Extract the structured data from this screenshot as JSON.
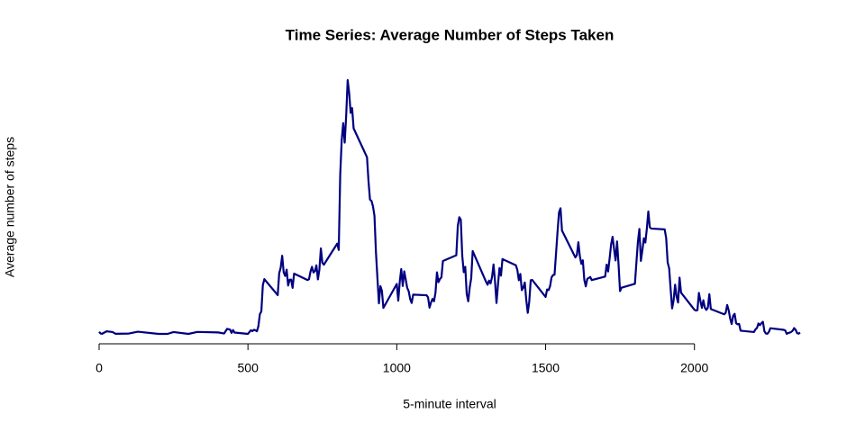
{
  "chart_data": {
    "type": "line",
    "title": "Time Series: Average Number of Steps Taken",
    "xlabel": "5-minute interval",
    "ylabel": "Average number of steps",
    "x": [
      0,
      5,
      10,
      25,
      45,
      55,
      100,
      130,
      200,
      230,
      250,
      300,
      330,
      400,
      420,
      430,
      440,
      445,
      450,
      455,
      500,
      505,
      510,
      515,
      520,
      525,
      530,
      535,
      540,
      545,
      550,
      555,
      600,
      605,
      610,
      615,
      620,
      625,
      630,
      635,
      640,
      645,
      650,
      655,
      700,
      705,
      710,
      715,
      720,
      725,
      730,
      735,
      740,
      745,
      750,
      755,
      800,
      805,
      810,
      815,
      820,
      825,
      830,
      835,
      840,
      845,
      850,
      855,
      900,
      905,
      910,
      915,
      920,
      925,
      930,
      935,
      940,
      945,
      950,
      955,
      1000,
      1005,
      1010,
      1015,
      1020,
      1025,
      1030,
      1035,
      1040,
      1045,
      1050,
      1055,
      1100,
      1105,
      1110,
      1115,
      1120,
      1125,
      1130,
      1135,
      1140,
      1145,
      1150,
      1155,
      1200,
      1205,
      1210,
      1215,
      1220,
      1225,
      1230,
      1235,
      1240,
      1245,
      1250,
      1255,
      1300,
      1305,
      1310,
      1315,
      1320,
      1325,
      1330,
      1335,
      1340,
      1345,
      1350,
      1355,
      1400,
      1405,
      1410,
      1415,
      1420,
      1425,
      1430,
      1435,
      1440,
      1445,
      1450,
      1455,
      1500,
      1505,
      1510,
      1515,
      1520,
      1525,
      1530,
      1535,
      1540,
      1545,
      1550,
      1555,
      1600,
      1605,
      1610,
      1615,
      1620,
      1625,
      1630,
      1635,
      1640,
      1645,
      1650,
      1655,
      1700,
      1705,
      1710,
      1715,
      1720,
      1725,
      1730,
      1735,
      1740,
      1745,
      1750,
      1755,
      1800,
      1805,
      1810,
      1815,
      1820,
      1825,
      1830,
      1835,
      1840,
      1845,
      1850,
      1855,
      1900,
      1905,
      1910,
      1915,
      1920,
      1925,
      1930,
      1935,
      1940,
      1945,
      1950,
      1955,
      2000,
      2005,
      2010,
      2015,
      2020,
      2025,
      2030,
      2035,
      2040,
      2045,
      2050,
      2055,
      2100,
      2105,
      2110,
      2115,
      2120,
      2125,
      2130,
      2135,
      2140,
      2145,
      2150,
      2155,
      2200,
      2205,
      2210,
      2215,
      2220,
      2225,
      2230,
      2235,
      2240,
      2245,
      2250,
      2255,
      2300,
      2305,
      2310,
      2315,
      2320,
      2325,
      2330,
      2335,
      2340,
      2345,
      2350,
      2355
    ],
    "series": [
      {
        "color": "#000080",
        "values": [
          1.7,
          0.3,
          0.1,
          2.1,
          1.5,
          0.1,
          0.3,
          1.8,
          0,
          0,
          1.5,
          0,
          1.6,
          1.2,
          0.3,
          4.1,
          3.5,
          0.8,
          3.1,
          1.1,
          0,
          1.56,
          3.0,
          2.25,
          3.32,
          2.96,
          2.09,
          6.06,
          16.0,
          18.3,
          39.5,
          44.5,
          31.5,
          49.3,
          53.8,
          63.5,
          50.0,
          47.1,
          52.2,
          39.3,
          44.0,
          44.2,
          37.4,
          49.0,
          43.8,
          44.4,
          50.5,
          54.5,
          49.9,
          51.0,
          55.7,
          44.3,
          52.3,
          69.5,
          57.8,
          56.2,
          73.4,
          68.2,
          129.4,
          157.5,
          171.2,
          155.4,
          177.3,
          206.2,
          195.9,
          179.6,
          183.4,
          167.0,
          143.5,
          124.0,
          109.1,
          108.1,
          103.7,
          96.0,
          66.2,
          45.2,
          24.8,
          38.8,
          35.0,
          21.1,
          40.6,
          27.0,
          42.4,
          52.7,
          38.9,
          50.8,
          44.3,
          37.4,
          34.7,
          28.3,
          25.1,
          31.9,
          31.4,
          29.7,
          21.3,
          25.5,
          28.4,
          26.5,
          33.4,
          50.0,
          42.0,
          44.6,
          46.0,
          59.2,
          63.9,
          87.7,
          94.8,
          92.8,
          63.4,
          50.2,
          54.5,
          32.4,
          26.5,
          37.7,
          45.1,
          67.3,
          42.3,
          39.9,
          43.3,
          41.0,
          46.2,
          56.4,
          42.8,
          25.1,
          40.0,
          53.5,
          47.3,
          60.8,
          55.8,
          52.0,
          43.6,
          48.7,
          35.5,
          37.5,
          41.8,
          27.5,
          17.1,
          26.1,
          43.6,
          43.8,
          30.0,
          36.1,
          35.5,
          38.8,
          46.0,
          47.8,
          48.1,
          65.3,
          82.9,
          98.7,
          102.1,
          84.0,
          62.1,
          64.1,
          74.5,
          63.2,
          56.9,
          59.8,
          43.9,
          38.6,
          44.7,
          45.5,
          46.2,
          43.7,
          46.6,
          56.3,
          50.7,
          61.2,
          72.7,
          78.9,
          68.9,
          59.7,
          75.1,
          56.5,
          34.8,
          37.5,
          40.7,
          58.0,
          74.7,
          85.3,
          59.3,
          67.8,
          77.7,
          74.2,
          85.3,
          99.5,
          86.6,
          85.6,
          84.9,
          77.8,
          58.0,
          53.4,
          36.3,
          20.7,
          27.4,
          40.0,
          30.2,
          25.5,
          45.7,
          33.5,
          19.6,
          19.0,
          19.3,
          33.3,
          26.8,
          21.2,
          27.3,
          21.3,
          19.5,
          21.3,
          32.3,
          20.2,
          15.9,
          17.2,
          23.5,
          19.2,
          12.5,
          8.0,
          14.7,
          16.3,
          8.7,
          7.8,
          8.1,
          2.6,
          1.5,
          3.7,
          4.8,
          8.5,
          7.1,
          8.7,
          9.8,
          2.2,
          0.3,
          0.1,
          1.6,
          4.6,
          3.3,
          2.8,
          0,
          0.8,
          1.0,
          1.6,
          2.6,
          4.7,
          3.3,
          0.6,
          0.2,
          1.1
        ]
      }
    ],
    "xlim": [
      0,
      2355
    ],
    "xticks": [
      0,
      500,
      1000,
      1500,
      2000
    ],
    "ylim": [
      0,
      206.2
    ]
  }
}
